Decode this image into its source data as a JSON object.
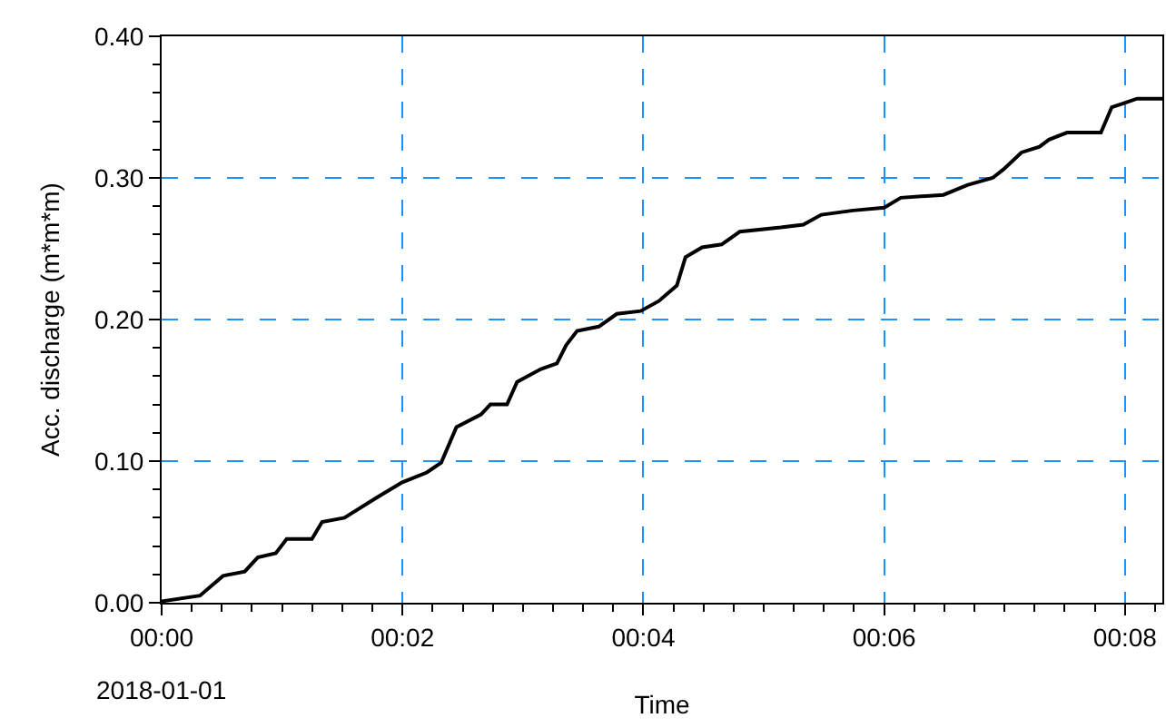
{
  "chart_data": {
    "type": "line",
    "xlabel": "Time",
    "ylabel": "Acc. discharge (m*m*m)",
    "annotations": [
      "2018-01-01"
    ],
    "x": [
      0,
      0.0053,
      0.0085,
      0.0115,
      0.0133,
      0.0158,
      0.0173,
      0.0208,
      0.0222,
      0.0253,
      0.0297,
      0.0333,
      0.0367,
      0.0387,
      0.0408,
      0.0442,
      0.0455,
      0.0478,
      0.0492,
      0.0525,
      0.0547,
      0.056,
      0.0575,
      0.0605,
      0.063,
      0.0663,
      0.0688,
      0.0713,
      0.0725,
      0.0748,
      0.0775,
      0.08,
      0.0857,
      0.0888,
      0.0913,
      0.0957,
      0.1,
      0.1023,
      0.1082,
      0.1115,
      0.115,
      0.1165,
      0.119,
      0.1215,
      0.1228,
      0.1253,
      0.13,
      0.1315,
      0.1333,
      0.135,
      0.1385
    ],
    "series": [
      {
        "color": "#000000",
        "values": [
          0.001,
          0.005,
          0.019,
          0.022,
          0.032,
          0.035,
          0.045,
          0.045,
          0.057,
          0.06,
          0.074,
          0.085,
          0.092,
          0.099,
          0.124,
          0.133,
          0.14,
          0.14,
          0.156,
          0.165,
          0.169,
          0.182,
          0.192,
          0.195,
          0.204,
          0.206,
          0.213,
          0.224,
          0.244,
          0.251,
          0.253,
          0.262,
          0.265,
          0.267,
          0.274,
          0.277,
          0.279,
          0.286,
          0.288,
          0.295,
          0.3,
          0.306,
          0.318,
          0.322,
          0.327,
          0.332,
          0.332,
          0.35,
          0.353,
          0.356,
          0.356
        ]
      }
    ],
    "xlim": [
      0,
      0.1385
    ],
    "xticks": [
      {
        "value": 0,
        "label": "00:00"
      },
      {
        "value": 0.03333,
        "label": "00:02"
      },
      {
        "value": 0.06667,
        "label": "00:04"
      },
      {
        "value": 0.1,
        "label": "00:06"
      },
      {
        "value": 0.13333,
        "label": "00:08"
      }
    ],
    "ylim": [
      0,
      0.4
    ],
    "yticks": [
      {
        "value": 0,
        "label": "0.00"
      },
      {
        "value": 0.1,
        "label": "0.10"
      },
      {
        "value": 0.2,
        "label": "0.20"
      },
      {
        "value": 0.3,
        "label": "0.30"
      },
      {
        "value": 0.4,
        "label": "0.40"
      }
    ],
    "grid": true,
    "marker": "none",
    "line_style": "solid"
  }
}
